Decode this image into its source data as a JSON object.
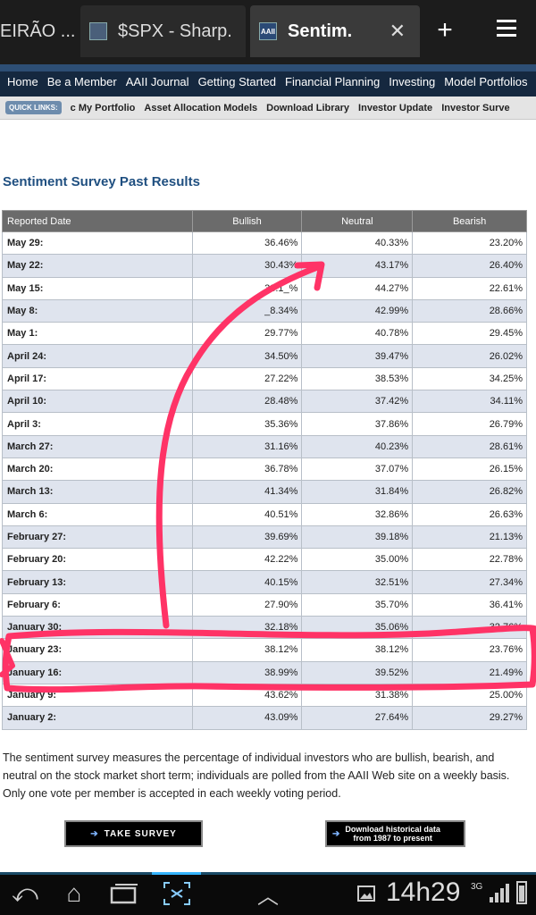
{
  "browser": {
    "tabs": [
      {
        "label": "EIRÃO ..."
      },
      {
        "label": "$SPX - Sharp."
      },
      {
        "label": "Sentim.",
        "close": "✕"
      }
    ],
    "new_tab_label": "+"
  },
  "nav": {
    "main": [
      "Home",
      "Be a Member",
      "AAII Journal",
      "Getting Started",
      "Financial Planning",
      "Investing",
      "Model Portfolios"
    ],
    "quick_label": "QUICK LINKS:",
    "quick": [
      "c My Portfolio",
      "Asset Allocation Models",
      "Download Library",
      "Investor Update",
      "Investor Surve"
    ]
  },
  "title": "Sentiment Survey Past Results",
  "table": {
    "headers": [
      "Reported Date",
      "Bullish",
      "Neutral",
      "Bearish"
    ],
    "rows": [
      [
        "May 29:",
        "36.46%",
        "40.33%",
        "23.20%"
      ],
      [
        "May 22:",
        "30.43%",
        "43.17%",
        "26.40%"
      ],
      [
        "May 15:",
        "33.1_%",
        "44.27%",
        "22.61%"
      ],
      [
        "May 8:",
        "_8.34%",
        "42.99%",
        "28.66%"
      ],
      [
        "May 1:",
        "29.77%",
        "40.78%",
        "29.45%"
      ],
      [
        "April 24:",
        "34.50%",
        "39.47%",
        "26.02%"
      ],
      [
        "April 17:",
        "27.22%",
        "38.53%",
        "34.25%"
      ],
      [
        "April 10:",
        "28.48%",
        "37.42%",
        "34.11%"
      ],
      [
        "April 3:",
        "35.36%",
        "37.86%",
        "26.79%"
      ],
      [
        "March 27:",
        "31.16%",
        "40.23%",
        "28.61%"
      ],
      [
        "March 20:",
        "36.78%",
        "37.07%",
        "26.15%"
      ],
      [
        "March 13:",
        "41.34%",
        "31.84%",
        "26.82%"
      ],
      [
        "March 6:",
        "40.51%",
        "32.86%",
        "26.63%"
      ],
      [
        "February 27:",
        "39.69%",
        "39.18%",
        "21.13%"
      ],
      [
        "February 20:",
        "42.22%",
        "35.00%",
        "22.78%"
      ],
      [
        "February 13:",
        "40.15%",
        "32.51%",
        "27.34%"
      ],
      [
        "February 6:",
        "27.90%",
        "35.70%",
        "36.41%"
      ],
      [
        "January 30:",
        "32.18%",
        "35.06%",
        "32.76%"
      ],
      [
        "January 23:",
        "38.12%",
        "38.12%",
        "23.76%"
      ],
      [
        "January 16:",
        "38.99%",
        "39.52%",
        "21.49%"
      ],
      [
        "January 9:",
        "43.62%",
        "31.38%",
        "25.00%"
      ],
      [
        "January 2:",
        "43.09%",
        "27.64%",
        "29.27%"
      ]
    ]
  },
  "description": "The sentiment survey measures the percentage of individual investors who are bullish, bearish, and neutral on the stock market short term; individuals are polled from the AAII Web site on a weekly basis. Only one vote per member is accepted in each weekly voting period.",
  "buttons": {
    "take_survey": "TAKE SURVEY",
    "download_line1": "Download historical data",
    "download_line2": "from 1987 to present"
  },
  "status": {
    "clock": "14h29",
    "network": "3G"
  },
  "colors": {
    "annotation": "#ff3366",
    "table_header": "#6b6b6b",
    "row_alt": "#dfe4ee",
    "title": "#1f4f80"
  }
}
